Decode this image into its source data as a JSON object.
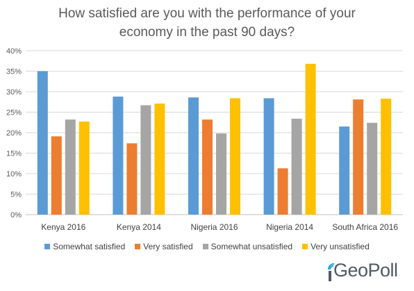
{
  "chart_data": {
    "type": "bar",
    "title_lines": [
      "How satisfied are you with the performance of your",
      "economy in the past 90 days?"
    ],
    "categories": [
      "Kenya 2016",
      "Kenya 2014",
      "Nigeria 2016",
      "Nigeria 2014",
      "South Africa 2016"
    ],
    "series": [
      {
        "name": "Somewhat satisfied",
        "color": "#5B9BD5",
        "values": [
          35.0,
          28.8,
          28.6,
          28.4,
          21.5
        ]
      },
      {
        "name": "Very satisfied",
        "color": "#ED7D31",
        "values": [
          19.1,
          17.4,
          23.2,
          11.3,
          28.1
        ]
      },
      {
        "name": "Somewhat unsatisfied",
        "color": "#A5A5A5",
        "values": [
          23.2,
          26.7,
          19.8,
          23.4,
          22.4
        ]
      },
      {
        "name": "Very unsatisfied",
        "color": "#FFC000",
        "values": [
          22.7,
          27.1,
          28.4,
          36.8,
          28.3
        ]
      }
    ],
    "ylim": [
      0,
      40
    ],
    "yticks": [
      "0%",
      "5%",
      "10%",
      "15%",
      "20%",
      "25%",
      "30%",
      "35%",
      "40%"
    ],
    "grid": true,
    "legend_position": "bottom"
  },
  "logo": {
    "text": "GeoPoll"
  }
}
